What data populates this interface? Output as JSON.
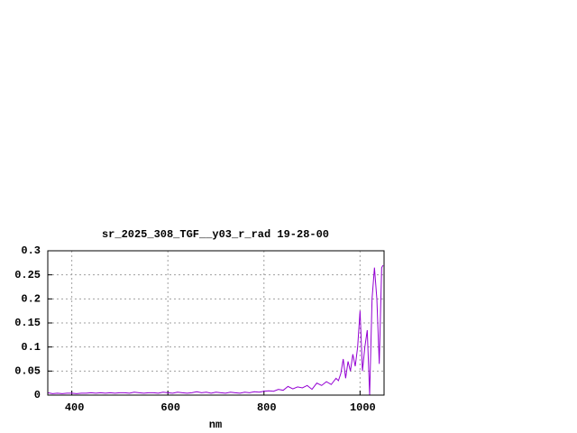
{
  "chart_data": {
    "type": "line",
    "title": "sr_2025_308_TGF__y03_r_rad 19-28-00",
    "x_label": "nm",
    "x": [
      350,
      360,
      370,
      380,
      390,
      400,
      410,
      420,
      430,
      440,
      450,
      460,
      470,
      480,
      490,
      500,
      510,
      520,
      530,
      540,
      550,
      560,
      570,
      580,
      590,
      600,
      610,
      620,
      630,
      640,
      650,
      660,
      670,
      680,
      690,
      700,
      710,
      720,
      730,
      740,
      750,
      760,
      770,
      780,
      790,
      800,
      810,
      820,
      830,
      840,
      850,
      860,
      870,
      880,
      890,
      900,
      910,
      920,
      930,
      940,
      950,
      955,
      960,
      965,
      970,
      975,
      980,
      985,
      990,
      995,
      1000,
      1005,
      1010,
      1015,
      1020,
      1025,
      1030,
      1035,
      1040,
      1045,
      1048
    ],
    "series": [
      {
        "color": "#9400d3",
        "values": [
          0.005,
          0.003,
          0.004,
          0.003,
          0.004,
          0.004,
          0.003,
          0.004,
          0.004,
          0.005,
          0.004,
          0.005,
          0.004,
          0.005,
          0.004,
          0.005,
          0.005,
          0.004,
          0.006,
          0.005,
          0.004,
          0.005,
          0.005,
          0.004,
          0.006,
          0.005,
          0.004,
          0.006,
          0.005,
          0.004,
          0.005,
          0.007,
          0.005,
          0.006,
          0.004,
          0.006,
          0.005,
          0.004,
          0.006,
          0.005,
          0.004,
          0.006,
          0.005,
          0.007,
          0.006,
          0.008,
          0.009,
          0.008,
          0.012,
          0.01,
          0.018,
          0.013,
          0.017,
          0.015,
          0.02,
          0.012,
          0.025,
          0.02,
          0.028,
          0.022,
          0.035,
          0.03,
          0.045,
          0.075,
          0.035,
          0.07,
          0.05,
          0.085,
          0.06,
          0.1,
          0.175,
          0.05,
          0.1,
          0.135,
          0,
          0.2,
          0.265,
          0.2,
          0.065,
          0.265,
          0.27
        ]
      }
    ],
    "xlim": [
      350,
      1050
    ],
    "ylim": [
      0,
      0.3
    ],
    "xticks": [
      400,
      600,
      800,
      1000
    ],
    "yticks": [
      0,
      0.05,
      0.1,
      0.15,
      0.2,
      0.25,
      0.3
    ],
    "grid": true
  }
}
